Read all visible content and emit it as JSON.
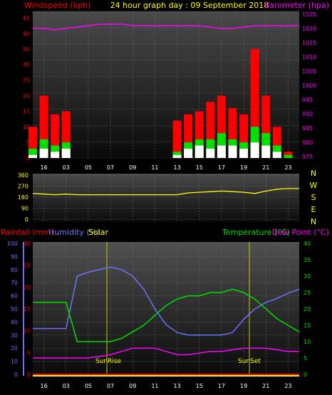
{
  "header": {
    "left_title": "Windspeed (kph)",
    "center_title": "24 hour graph day : 09 September 2018",
    "right_title": "Barometer (hpa)"
  },
  "colors": {
    "wind": "#ff0000",
    "gust": "#00e000",
    "speed": "#ffffff",
    "barometer": "#ff00ff",
    "direction": "#ffff00",
    "humidity": "#7070ff",
    "temperature": "#00dd00",
    "dewpoint": "#ff00ff",
    "rainfall": "#ff0000",
    "solar": "#ffff00",
    "axis_text": "#ffffff"
  },
  "x_ticks": [
    "16",
    "03",
    "05",
    "07",
    "09",
    "11",
    "13",
    "15",
    "17",
    "19",
    "21",
    "23"
  ],
  "panel1": {
    "left_axis_ticks": [
      "0",
      "5",
      "10",
      "15",
      "20",
      "25",
      "30",
      "35",
      "40",
      "45"
    ],
    "right_axis_ticks": [
      "975",
      "980",
      "985",
      "990",
      "995",
      "1000",
      "1005",
      "1010",
      "1015",
      "1020",
      "1025"
    ]
  },
  "panel2": {
    "left_axis_ticks": [
      "0",
      "90",
      "180",
      "270",
      "360"
    ],
    "compass": [
      "N",
      "W",
      "S",
      "E",
      "N"
    ]
  },
  "panel3": {
    "label_rainfall": "Rainfall (mm)",
    "label_humidity": "Humidity (%)",
    "label_solar": "Solar",
    "label_temperature": "Temperature (°C)",
    "label_dewpoint": "Dew Point (°C)",
    "humidity_ticks": [
      "0",
      "10",
      "20",
      "30",
      "40",
      "50",
      "60",
      "70",
      "80",
      "90",
      "100"
    ],
    "rain_ticks": [
      "0",
      "5",
      "10",
      "15",
      "20",
      "25",
      "30"
    ],
    "temp_ticks": [
      "0",
      "5",
      "10",
      "15",
      "20",
      "25",
      "30",
      "35",
      "40"
    ],
    "sunrise_label": "SunRise",
    "sunset_label": "SunSet"
  },
  "chart_data": [
    {
      "type": "line",
      "title": "24 hour graph day : 09 September 2018",
      "ylabel": "Windspeed (kph)",
      "y2label": "Barometer (hpa)",
      "ylim": [
        0,
        45
      ],
      "y2lim": [
        975,
        1025
      ],
      "x_hours": [
        15,
        16,
        17,
        18,
        19,
        20,
        21,
        22,
        23,
        24,
        25,
        26,
        27,
        28,
        29,
        30,
        31,
        32,
        33,
        34,
        35,
        36,
        37,
        38,
        39
      ],
      "series": [
        {
          "name": "Barometer (hpa)",
          "axis": "right",
          "values": [
            1020,
            1020,
            1019.5,
            1020,
            1020.5,
            1021,
            1021.5,
            1021.5,
            1021.5,
            1021,
            1021,
            1021,
            1021,
            1021,
            1021,
            1021,
            1020.5,
            1020,
            1020,
            1020.5,
            1021,
            1021,
            1021,
            1021,
            1021
          ]
        },
        {
          "name": "gust",
          "axis": "left",
          "values": [
            10,
            20,
            14,
            15,
            0,
            0,
            0,
            0,
            0,
            0,
            0,
            0,
            0,
            12,
            14,
            15,
            18,
            20,
            16,
            14,
            35,
            20,
            10,
            2,
            0
          ]
        },
        {
          "name": "average",
          "axis": "left",
          "values": [
            3,
            6,
            4,
            5,
            0,
            0,
            0,
            0,
            0,
            0,
            0,
            0,
            0,
            2,
            5,
            6,
            6,
            8,
            6,
            5,
            10,
            8,
            4,
            1,
            0
          ]
        },
        {
          "name": "speed",
          "axis": "left",
          "values": [
            1,
            3,
            2,
            3,
            0,
            0,
            0,
            0,
            0,
            0,
            0,
            0,
            0,
            1,
            3,
            4,
            3,
            4,
            4,
            3,
            5,
            4,
            2,
            0,
            0
          ]
        }
      ]
    },
    {
      "type": "line",
      "ylim": [
        0,
        360
      ],
      "x_hours": [
        15,
        16,
        17,
        18,
        19,
        20,
        21,
        22,
        23,
        24,
        25,
        26,
        27,
        28,
        29,
        30,
        31,
        32,
        33,
        34,
        35,
        36,
        37,
        38,
        39
      ],
      "series": [
        {
          "name": "direction",
          "values": [
            210,
            205,
            200,
            205,
            200,
            200,
            200,
            200,
            200,
            200,
            200,
            200,
            200,
            200,
            215,
            220,
            225,
            230,
            225,
            220,
            210,
            230,
            245,
            250,
            250
          ]
        }
      ]
    },
    {
      "type": "line",
      "ylim": [
        0,
        100
      ],
      "y2lim": [
        0,
        40
      ],
      "x_hours": [
        15,
        16,
        17,
        18,
        19,
        20,
        21,
        22,
        23,
        24,
        25,
        26,
        27,
        28,
        29,
        30,
        31,
        32,
        33,
        34,
        35,
        36,
        37,
        38,
        39
      ],
      "series": [
        {
          "name": "Humidity (%)",
          "axis": "left",
          "values": [
            35,
            35,
            35,
            35,
            75,
            78,
            80,
            82,
            80,
            75,
            65,
            50,
            38,
            32,
            30,
            30,
            30,
            30,
            32,
            42,
            50,
            55,
            58,
            62,
            65
          ]
        },
        {
          "name": "Temperature (°C)",
          "axis": "right",
          "values": [
            22,
            22,
            22,
            22,
            10,
            10,
            10,
            10,
            11,
            13,
            15,
            18,
            21,
            23,
            24,
            24,
            25,
            25,
            26,
            25,
            23,
            20,
            17,
            15,
            13
          ]
        },
        {
          "name": "Dew Point (°C)",
          "axis": "right",
          "values": [
            5,
            5,
            5,
            5,
            5,
            5,
            5.5,
            6,
            7,
            8,
            8,
            8,
            7,
            6,
            6,
            6.5,
            7,
            7,
            7.5,
            8,
            8,
            8,
            7.5,
            7,
            7
          ]
        }
      ]
    }
  ]
}
